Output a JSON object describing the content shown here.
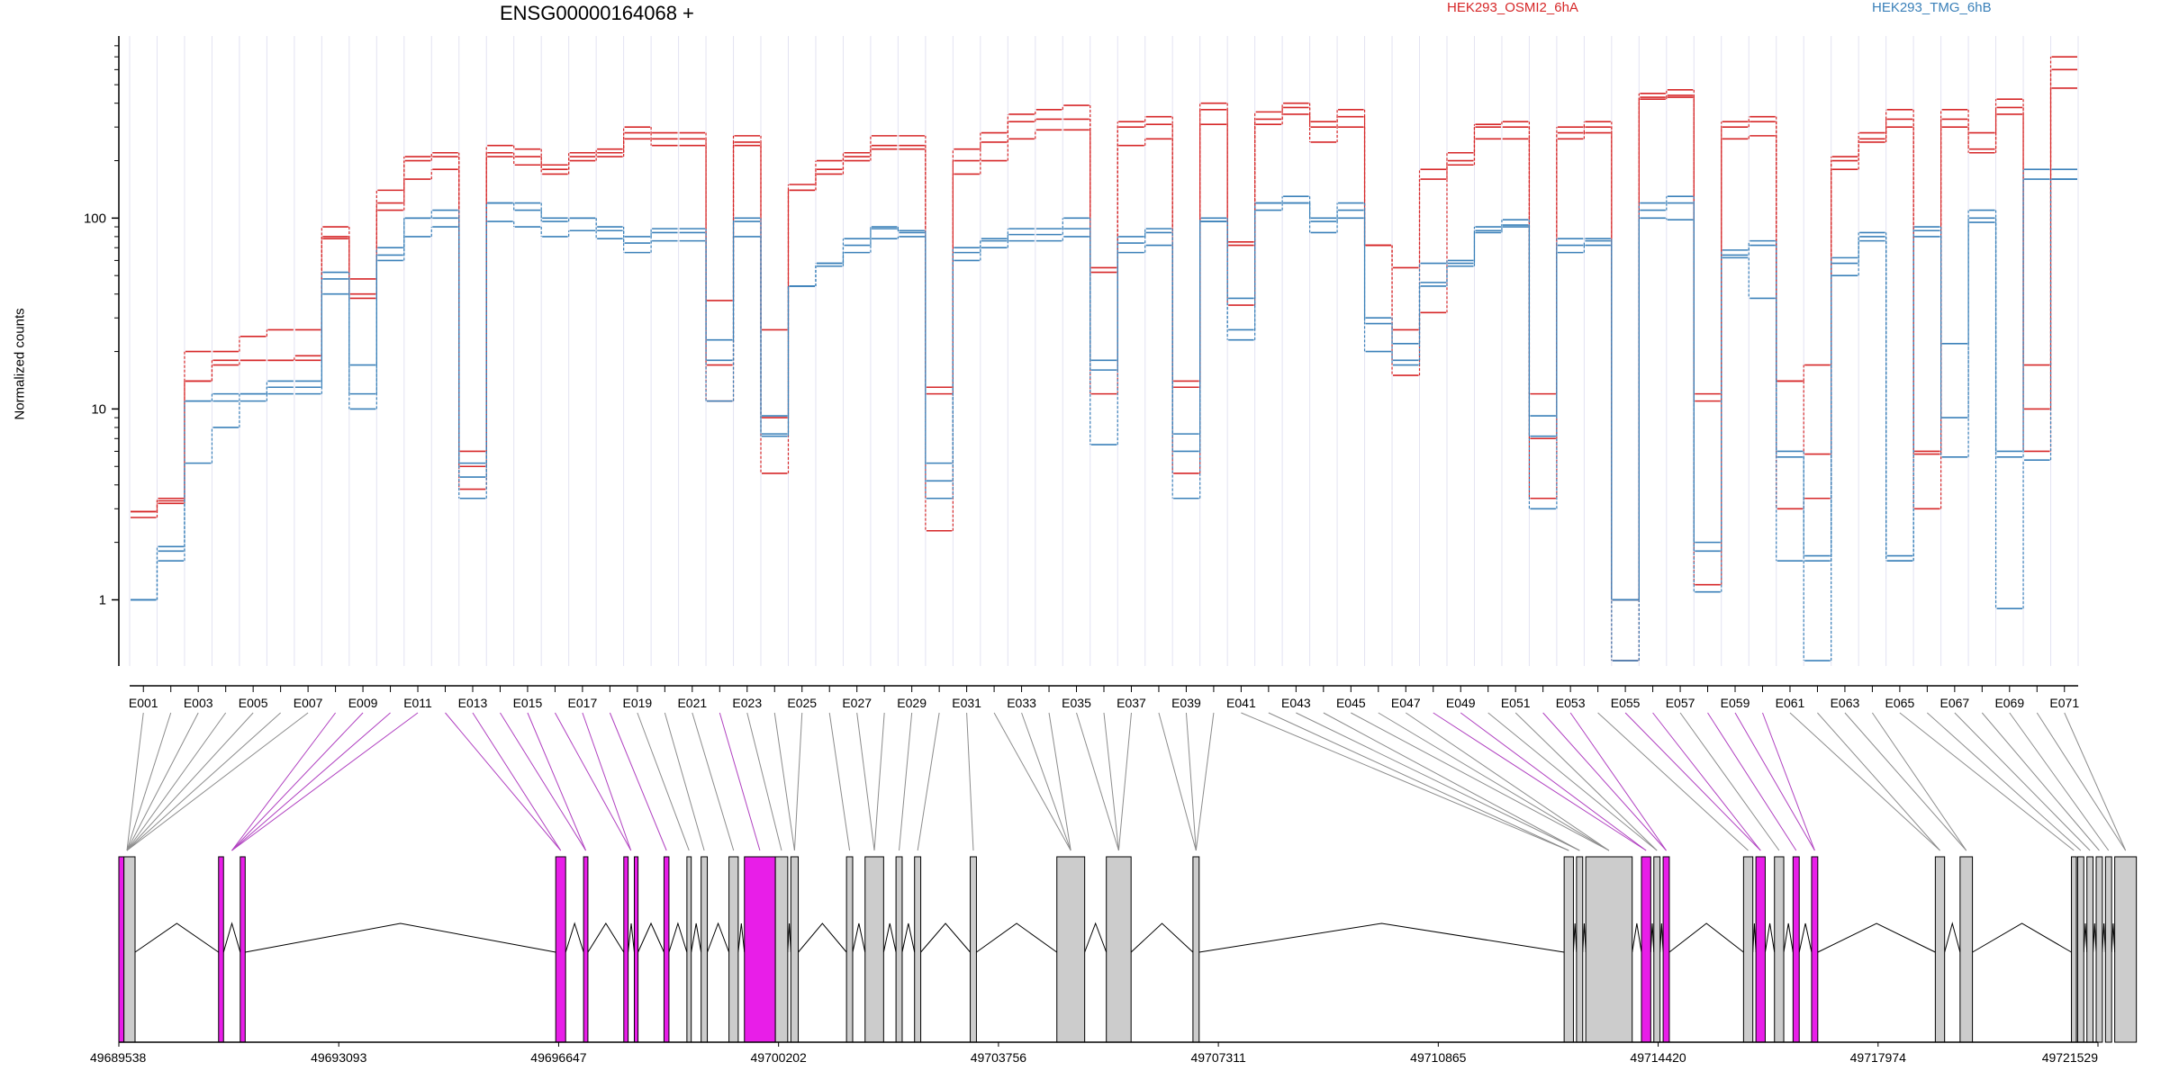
{
  "title": "ENSG00000164068 +",
  "legend": [
    {
      "label": "HEK293_OSMI2_6hA",
      "color": "#d62728"
    },
    {
      "label": "HEK293_TMG_6hB",
      "color": "#3a80b9"
    }
  ],
  "colors": {
    "condition_a": "#d62728",
    "condition_b": "#3a80b9",
    "highlight_exon": "#e81ee8",
    "normal_exon": "#cccccc",
    "grid": "#e3e3f2"
  },
  "chart_data": {
    "type": "line",
    "scale": "log",
    "ylabel": "Normalized counts",
    "yticks": [
      1,
      10,
      100
    ],
    "ylim": [
      0.45,
      900
    ],
    "grid": true,
    "categories": [
      "E001",
      "E002",
      "E003",
      "E004",
      "E005",
      "E006",
      "E007",
      "E008",
      "E009",
      "E010",
      "E011",
      "E012",
      "E013",
      "E014",
      "E015",
      "E016",
      "E017",
      "E018",
      "E019",
      "E020",
      "E021",
      "E022",
      "E023",
      "E024",
      "E025",
      "E026",
      "E027",
      "E028",
      "E029",
      "E030",
      "E031",
      "E032",
      "E033",
      "E034",
      "E035",
      "E036",
      "E037",
      "E038",
      "E039",
      "E040",
      "E041",
      "E042",
      "E043",
      "E044",
      "E045",
      "E046",
      "E047",
      "E048",
      "E049",
      "E050",
      "E051",
      "E052",
      "E053",
      "E054",
      "E055",
      "E056",
      "E057",
      "E058",
      "E059",
      "E060",
      "E061",
      "E062",
      "E063",
      "E064",
      "E065",
      "E066",
      "E067",
      "E068",
      "E069",
      "E070",
      "E071"
    ],
    "xtick_labels": [
      "E001",
      "E003",
      "E005",
      "E007",
      "E009",
      "E011",
      "E013",
      "E015",
      "E017",
      "E019",
      "E021",
      "E023",
      "E025",
      "E027",
      "E029",
      "E031",
      "E033",
      "E035",
      "E037",
      "E039",
      "E041",
      "E043",
      "E045",
      "E047",
      "E049",
      "E051",
      "E053",
      "E055",
      "E057",
      "E059",
      "E061",
      "E063",
      "E065",
      "E067",
      "E069",
      "E071"
    ],
    "series": [
      {
        "group": "HEK293_OSMI2_6hA",
        "values": [
          2.9,
          3.4,
          20,
          20,
          24,
          26,
          26,
          90,
          48,
          140,
          210,
          220,
          6,
          240,
          230,
          190,
          220,
          230,
          300,
          280,
          280,
          37,
          270,
          26,
          150,
          200,
          220,
          270,
          270,
          13,
          230,
          280,
          350,
          370,
          390,
          55,
          320,
          340,
          14,
          400,
          75,
          360,
          400,
          320,
          370,
          72,
          55,
          180,
          220,
          310,
          320,
          12,
          300,
          320,
          1,
          450,
          470,
          12,
          320,
          340,
          14,
          17,
          210,
          280,
          370,
          6,
          370,
          280,
          420,
          17,
          700
        ]
      },
      {
        "group": "HEK293_OSMI2_6hA",
        "values": [
          2.7,
          3.2,
          14,
          18,
          18,
          18,
          19,
          80,
          40,
          120,
          200,
          210,
          5,
          220,
          210,
          180,
          200,
          220,
          280,
          260,
          260,
          17,
          250,
          9,
          140,
          180,
          200,
          240,
          240,
          12,
          200,
          250,
          320,
          330,
          330,
          52,
          300,
          310,
          13,
          370,
          72,
          330,
          380,
          300,
          340,
          72,
          26,
          160,
          200,
          300,
          300,
          7,
          280,
          300,
          1,
          430,
          440,
          11,
          300,
          320,
          14,
          5.8,
          200,
          260,
          330,
          5.8,
          330,
          220,
          380,
          10,
          600
        ]
      },
      {
        "group": "HEK293_OSMI2_6hA",
        "values": [
          2.9,
          3.3,
          14,
          17,
          18,
          18,
          18,
          78,
          38,
          110,
          160,
          180,
          3.8,
          210,
          190,
          170,
          210,
          210,
          260,
          240,
          240,
          11,
          240,
          4.6,
          140,
          170,
          210,
          230,
          230,
          2.3,
          170,
          200,
          260,
          290,
          290,
          12,
          240,
          260,
          4.6,
          310,
          35,
          310,
          350,
          250,
          300,
          72,
          15,
          32,
          190,
          260,
          260,
          3.4,
          260,
          280,
          0.48,
          420,
          430,
          1.2,
          260,
          270,
          3,
          3.4,
          180,
          250,
          300,
          3,
          300,
          230,
          350,
          6,
          480
        ]
      },
      {
        "group": "HEK293_TMG_6hB",
        "values": [
          1.0,
          1.9,
          11,
          12,
          12,
          14,
          14,
          52,
          17,
          70,
          100,
          110,
          5.2,
          120,
          120,
          100,
          100,
          90,
          80,
          88,
          88,
          23,
          100,
          9.2,
          44,
          58,
          78,
          90,
          86,
          5.2,
          70,
          78,
          88,
          88,
          100,
          18,
          80,
          88,
          7.4,
          100,
          38,
          120,
          130,
          100,
          120,
          30,
          22,
          58,
          60,
          90,
          98,
          9.2,
          78,
          78,
          1,
          120,
          130,
          2,
          68,
          76,
          6,
          1.7,
          62,
          84,
          1.7,
          90,
          22,
          110,
          6,
          180,
          180
        ]
      },
      {
        "group": "HEK293_TMG_6hB",
        "values": [
          1.0,
          1.8,
          11,
          11,
          12,
          13,
          13,
          48,
          12,
          64,
          100,
          100,
          4.4,
          120,
          110,
          96,
          100,
          86,
          74,
          84,
          84,
          18,
          96,
          7.4,
          44,
          58,
          72,
          88,
          84,
          4.2,
          66,
          76,
          82,
          82,
          88,
          16,
          74,
          84,
          6,
          96,
          26,
          120,
          120,
          96,
          110,
          28,
          18,
          46,
          58,
          86,
          92,
          7.2,
          72,
          76,
          1,
          110,
          120,
          1.8,
          64,
          72,
          5.6,
          1.6,
          58,
          80,
          1.6,
          86,
          9,
          100,
          5.6,
          160,
          160
        ]
      },
      {
        "group": "HEK293_TMG_6hB",
        "values": [
          1.0,
          1.6,
          5.2,
          8,
          11,
          12,
          12,
          40,
          10,
          60,
          80,
          90,
          3.4,
          96,
          90,
          80,
          86,
          78,
          66,
          76,
          76,
          11,
          80,
          7.2,
          44,
          56,
          66,
          78,
          80,
          3.4,
          60,
          70,
          76,
          76,
          80,
          6.5,
          66,
          72,
          3.4,
          96,
          23,
          110,
          120,
          84,
          100,
          20,
          17,
          44,
          56,
          84,
          90,
          3,
          66,
          72,
          0.48,
          100,
          98,
          1.1,
          62,
          38,
          1.6,
          0.48,
          50,
          76,
          1.6,
          80,
          5.6,
          95,
          0.9,
          5.4,
          160
        ]
      }
    ]
  },
  "genome_axis": {
    "labels": [
      "49689538",
      "49693093",
      "49696647",
      "49700202",
      "49703756",
      "49707311",
      "49710865",
      "49714420",
      "49717974",
      "49721529"
    ]
  }
}
